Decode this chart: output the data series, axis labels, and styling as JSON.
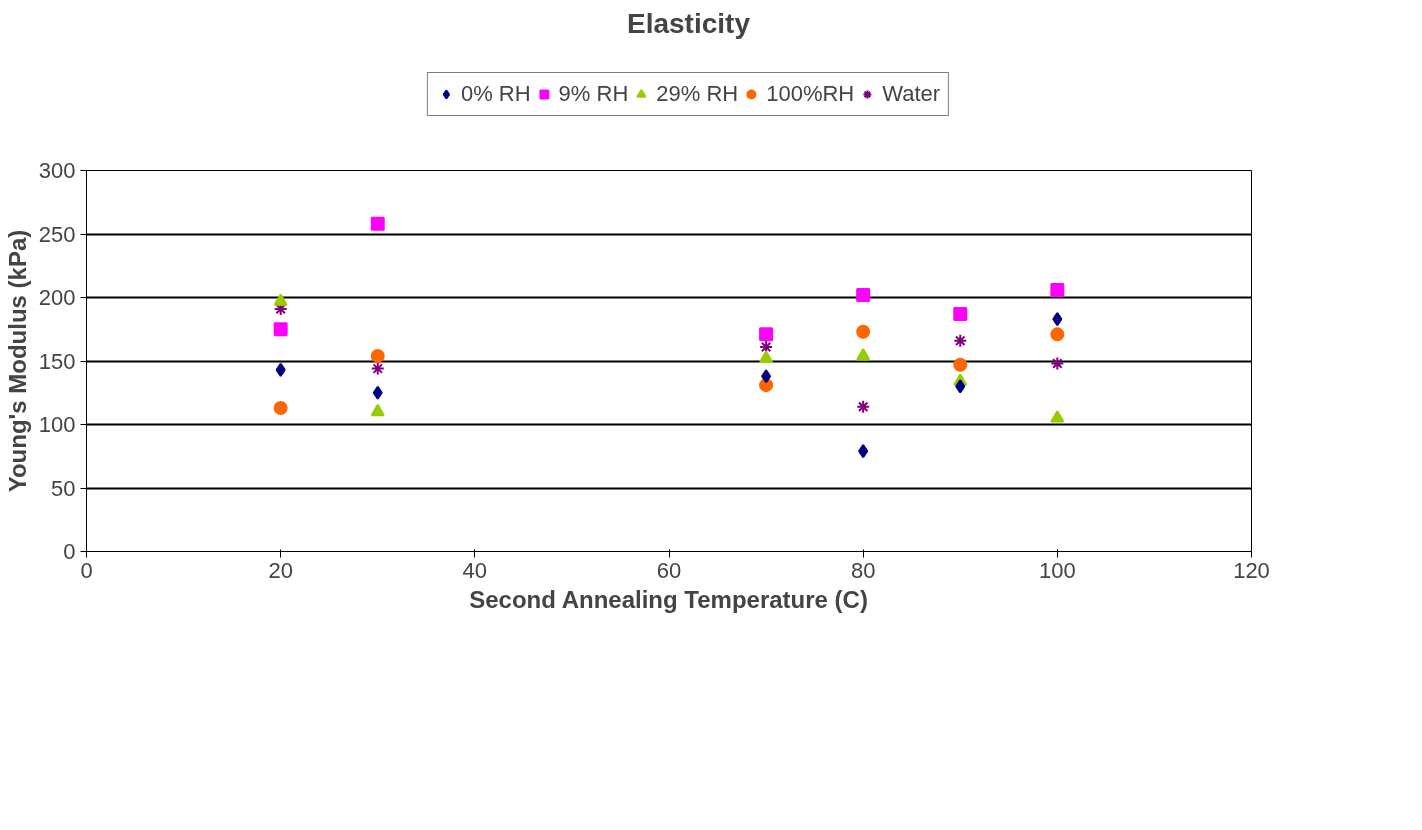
{
  "chart_data": {
    "type": "scatter",
    "title": "Elasticity",
    "xlabel": "Second Annealing Temperature (C)",
    "ylabel": "Young's Modulus (kPa)",
    "x": [
      20,
      30,
      70,
      80,
      90,
      100
    ],
    "series": [
      {
        "name": "0% RH",
        "color": "#000080",
        "marker": "diamond",
        "values": [
          143,
          125,
          138,
          79,
          130,
          183
        ]
      },
      {
        "name": "9% RH",
        "color": "#ff00ff",
        "marker": "square",
        "values": [
          175,
          258,
          171,
          202,
          187,
          206
        ]
      },
      {
        "name": "29% RH",
        "color": "#99cc00",
        "marker": "triangle",
        "values": [
          197,
          110,
          152,
          154,
          134,
          105
        ]
      },
      {
        "name": "100%RH",
        "color": "#ff6600",
        "marker": "circle",
        "values": [
          113,
          154,
          131,
          173,
          147,
          171
        ]
      },
      {
        "name": "Water",
        "color": "#800080",
        "marker": "cross",
        "values": [
          191,
          144,
          161,
          114,
          166,
          148
        ]
      }
    ],
    "xlim": [
      0,
      120
    ],
    "xticks": [
      0,
      20,
      40,
      60,
      80,
      100,
      120
    ],
    "ylim": [
      0,
      300
    ],
    "yticks": [
      0,
      50,
      100,
      150,
      200,
      250,
      300
    ],
    "grid": "y",
    "legend": "top"
  }
}
